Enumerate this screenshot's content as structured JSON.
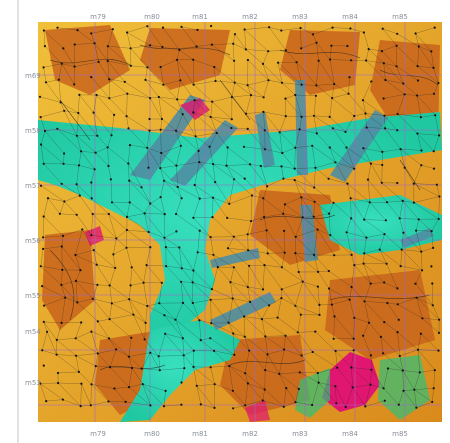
{
  "map": {
    "x_ticks": [
      "m79",
      "m80",
      "m81",
      "m82",
      "m83",
      "m84",
      "m85"
    ],
    "x_ticks_bottom": [
      "m79",
      "m80",
      "m81",
      "m82",
      "m83",
      "m84",
      "m85"
    ],
    "y_ticks": [
      "m69",
      "m58",
      "m57",
      "m56",
      "m55",
      "m54",
      "m53"
    ],
    "colors": {
      "terrain_low": "#27d6ad",
      "terrain_mid": "#e9b636",
      "terrain_high": "#c86018",
      "peak": "#e01670",
      "glacier": "#4f8ea3",
      "grid_line": "#a066c8",
      "contour": "#1a1a1a",
      "survey_dot": "#111111"
    },
    "icons": [
      "survey-point-icon",
      "triangulation-network",
      "grid-overlay"
    ]
  }
}
